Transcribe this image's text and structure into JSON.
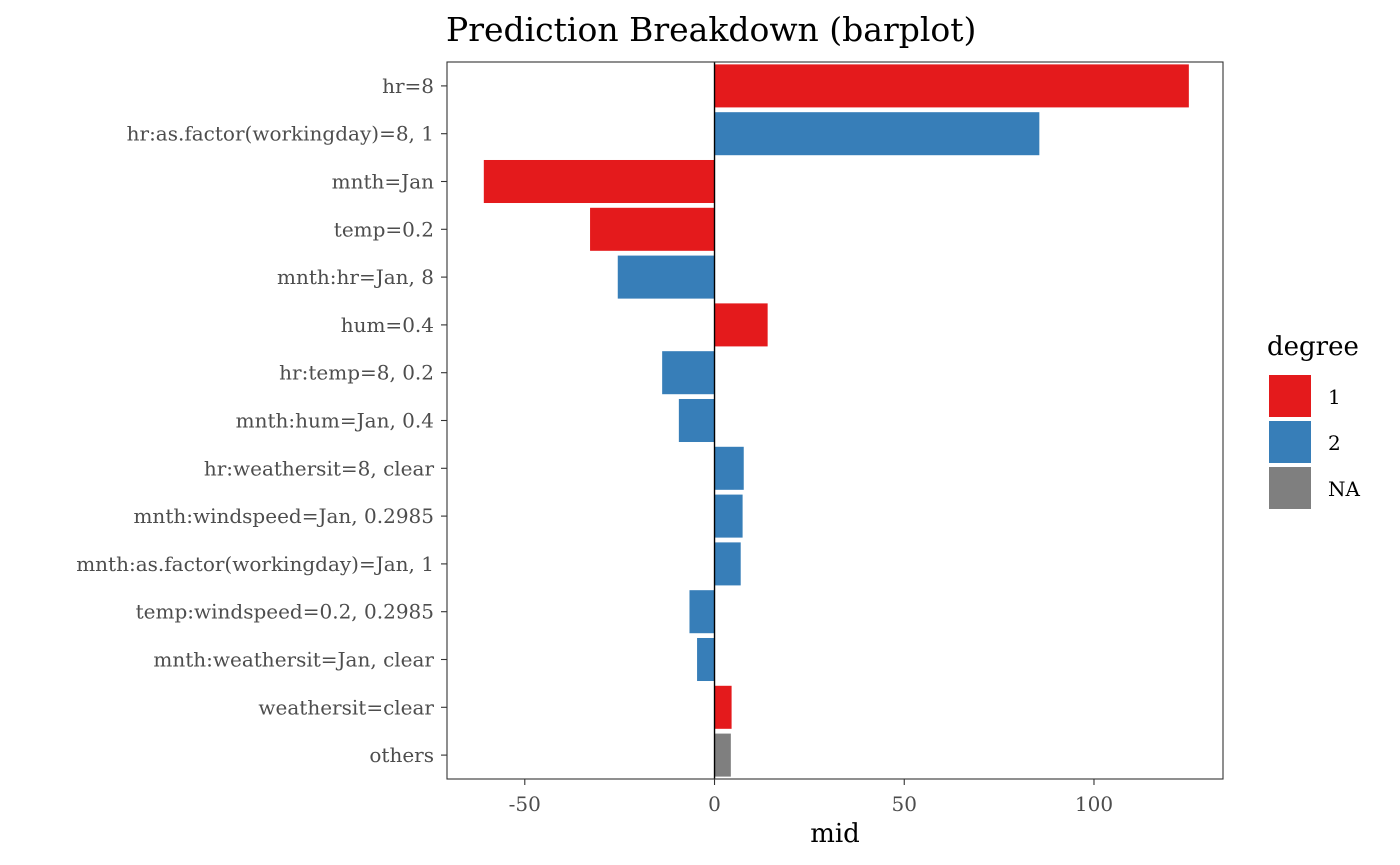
{
  "chart_data": {
    "type": "bar",
    "orientation": "horizontal",
    "title": "Prediction Breakdown (barplot)",
    "xlabel": "mid",
    "ylabel": "",
    "xlim": [
      -70.5,
      134
    ],
    "xticks": [
      -50,
      0,
      50,
      100
    ],
    "xtick_labels": [
      "-50",
      "0",
      "50",
      "100"
    ],
    "grid": false,
    "zero_line": true,
    "legend": {
      "title": "degree",
      "position": "right",
      "items": [
        {
          "label": "1",
          "color": "#E41A1C"
        },
        {
          "label": "2",
          "color": "#377EB8"
        },
        {
          "label": "NA",
          "color": "#7F7F7F"
        }
      ]
    },
    "categories": [
      "hr=8",
      "hr:as.factor(workingday)=8, 1",
      "mnth=Jan",
      "temp=0.2",
      "mnth:hr=Jan, 8",
      "hum=0.4",
      "hr:temp=8, 0.2",
      "mnth:hum=Jan, 0.4",
      "hr:weathersit=8, clear",
      "mnth:windspeed=Jan, 0.2985",
      "mnth:as.factor(workingday)=Jan, 1",
      "temp:windspeed=0.2, 0.2985",
      "mnth:weathersit=Jan, clear",
      "weathersit=clear",
      "others"
    ],
    "values": [
      125,
      85.6,
      -60.8,
      -32.8,
      -25.5,
      14,
      -13.8,
      -9.4,
      7.7,
      7.4,
      6.9,
      -6.6,
      -4.6,
      4.5,
      4.3
    ],
    "degree": [
      "1",
      "2",
      "1",
      "1",
      "2",
      "1",
      "2",
      "2",
      "2",
      "2",
      "2",
      "2",
      "2",
      "1",
      "NA"
    ]
  }
}
